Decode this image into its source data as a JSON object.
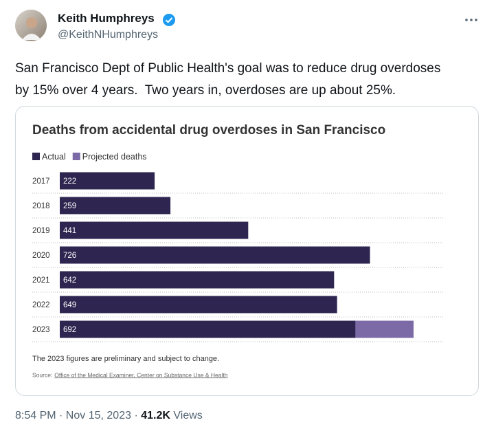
{
  "tweet": {
    "name": "Keith Humphreys",
    "handle": "@KeithNHumphreys",
    "text": "San Francisco Dept of Public Health's goal was to reduce drug overdoses\nby 15% over 4 years.  Two years in, overdoses are up about 25%.",
    "timestamp": "8:54 PM · Nov 15, 2023",
    "separator": "·",
    "views": "41.2K",
    "views_label": "Views"
  },
  "chart_data": {
    "type": "bar",
    "orientation": "horizontal",
    "stacked": true,
    "title": "Deaths from accidental drug overdoses in San Francisco",
    "categories": [
      "2017",
      "2018",
      "2019",
      "2020",
      "2021",
      "2022",
      "2023"
    ],
    "series": [
      {
        "name": "Actual",
        "color": "#2e2550",
        "values": [
          222,
          259,
          441,
          726,
          642,
          649,
          692
        ]
      },
      {
        "name": "Projected deaths",
        "color": "#7b6aa6",
        "values": [
          null,
          null,
          null,
          null,
          null,
          null,
          136
        ]
      }
    ],
    "note": "The 2023 figures are preliminary and subject to change.",
    "source_label": "Source:",
    "source_link": "Office of the Medical Examiner, Center on Substance Use & Health"
  }
}
